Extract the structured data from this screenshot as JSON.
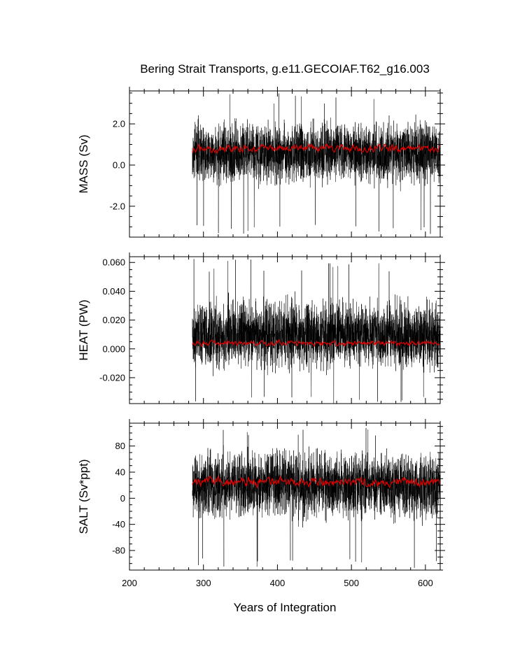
{
  "figure": {
    "title": "Bering Strait Transports, g.e11.GECOIAF.T62_g16.003",
    "xlabel": "Years of Integration"
  },
  "chart_data": [
    {
      "type": "line",
      "ylabel": "MASS (Sv)",
      "xlim": [
        200,
        620
      ],
      "ylim": [
        -3.5,
        3.6
      ],
      "x_ticks": [
        200,
        300,
        400,
        500,
        600
      ],
      "y_ticks": [
        -2.0,
        0.0,
        2.0
      ],
      "y_tick_labels": [
        "-2.0",
        "0.0",
        "2.0"
      ],
      "grid": false,
      "series": [
        {
          "values_summary": {
            "x_start": 285,
            "x_end": 620,
            "typical_low": -1.3,
            "typical_high": 2.5,
            "min": -3.4,
            "max": 3.5
          },
          "color": "#000000"
        },
        {
          "values_summary": {
            "x_start": 285,
            "x_end": 620,
            "mean": 0.8,
            "spread": 0.3
          },
          "color": "#e00000"
        }
      ]
    },
    {
      "type": "line",
      "ylabel": "HEAT (PW)",
      "xlim": [
        200,
        620
      ],
      "ylim": [
        -0.038,
        0.064
      ],
      "x_ticks": [
        200,
        300,
        400,
        500,
        600
      ],
      "y_ticks": [
        -0.02,
        0.0,
        0.02,
        0.04,
        0.06
      ],
      "y_tick_labels": [
        "-0.020",
        "0.000",
        "0.020",
        "0.040",
        "0.060"
      ],
      "grid": false,
      "series": [
        {
          "values_summary": {
            "x_start": 285,
            "x_end": 620,
            "typical_low": -0.02,
            "typical_high": 0.04,
            "min": -0.038,
            "max": 0.063
          },
          "color": "#000000"
        },
        {
          "values_summary": {
            "x_start": 285,
            "x_end": 620,
            "mean": 0.004,
            "spread": 0.003
          },
          "color": "#e00000"
        }
      ]
    },
    {
      "type": "line",
      "ylabel": "SALT (Sv*ppt)",
      "xlim": [
        200,
        620
      ],
      "ylim": [
        -110,
        115
      ],
      "x_ticks": [
        200,
        300,
        400,
        500,
        600
      ],
      "x_tick_labels": [
        "200",
        "300",
        "400",
        "500",
        "600"
      ],
      "y_ticks": [
        -80,
        -40,
        0,
        40,
        80
      ],
      "y_tick_labels": [
        "-80",
        "-40",
        "0",
        "40",
        "80"
      ],
      "grid": false,
      "series": [
        {
          "values_summary": {
            "x_start": 285,
            "x_end": 620,
            "typical_low": -45,
            "typical_high": 85,
            "min": -108,
            "max": 110
          },
          "color": "#000000"
        },
        {
          "values_summary": {
            "x_start": 285,
            "x_end": 620,
            "mean": 25,
            "spread": 12
          },
          "color": "#e00000"
        }
      ]
    }
  ]
}
